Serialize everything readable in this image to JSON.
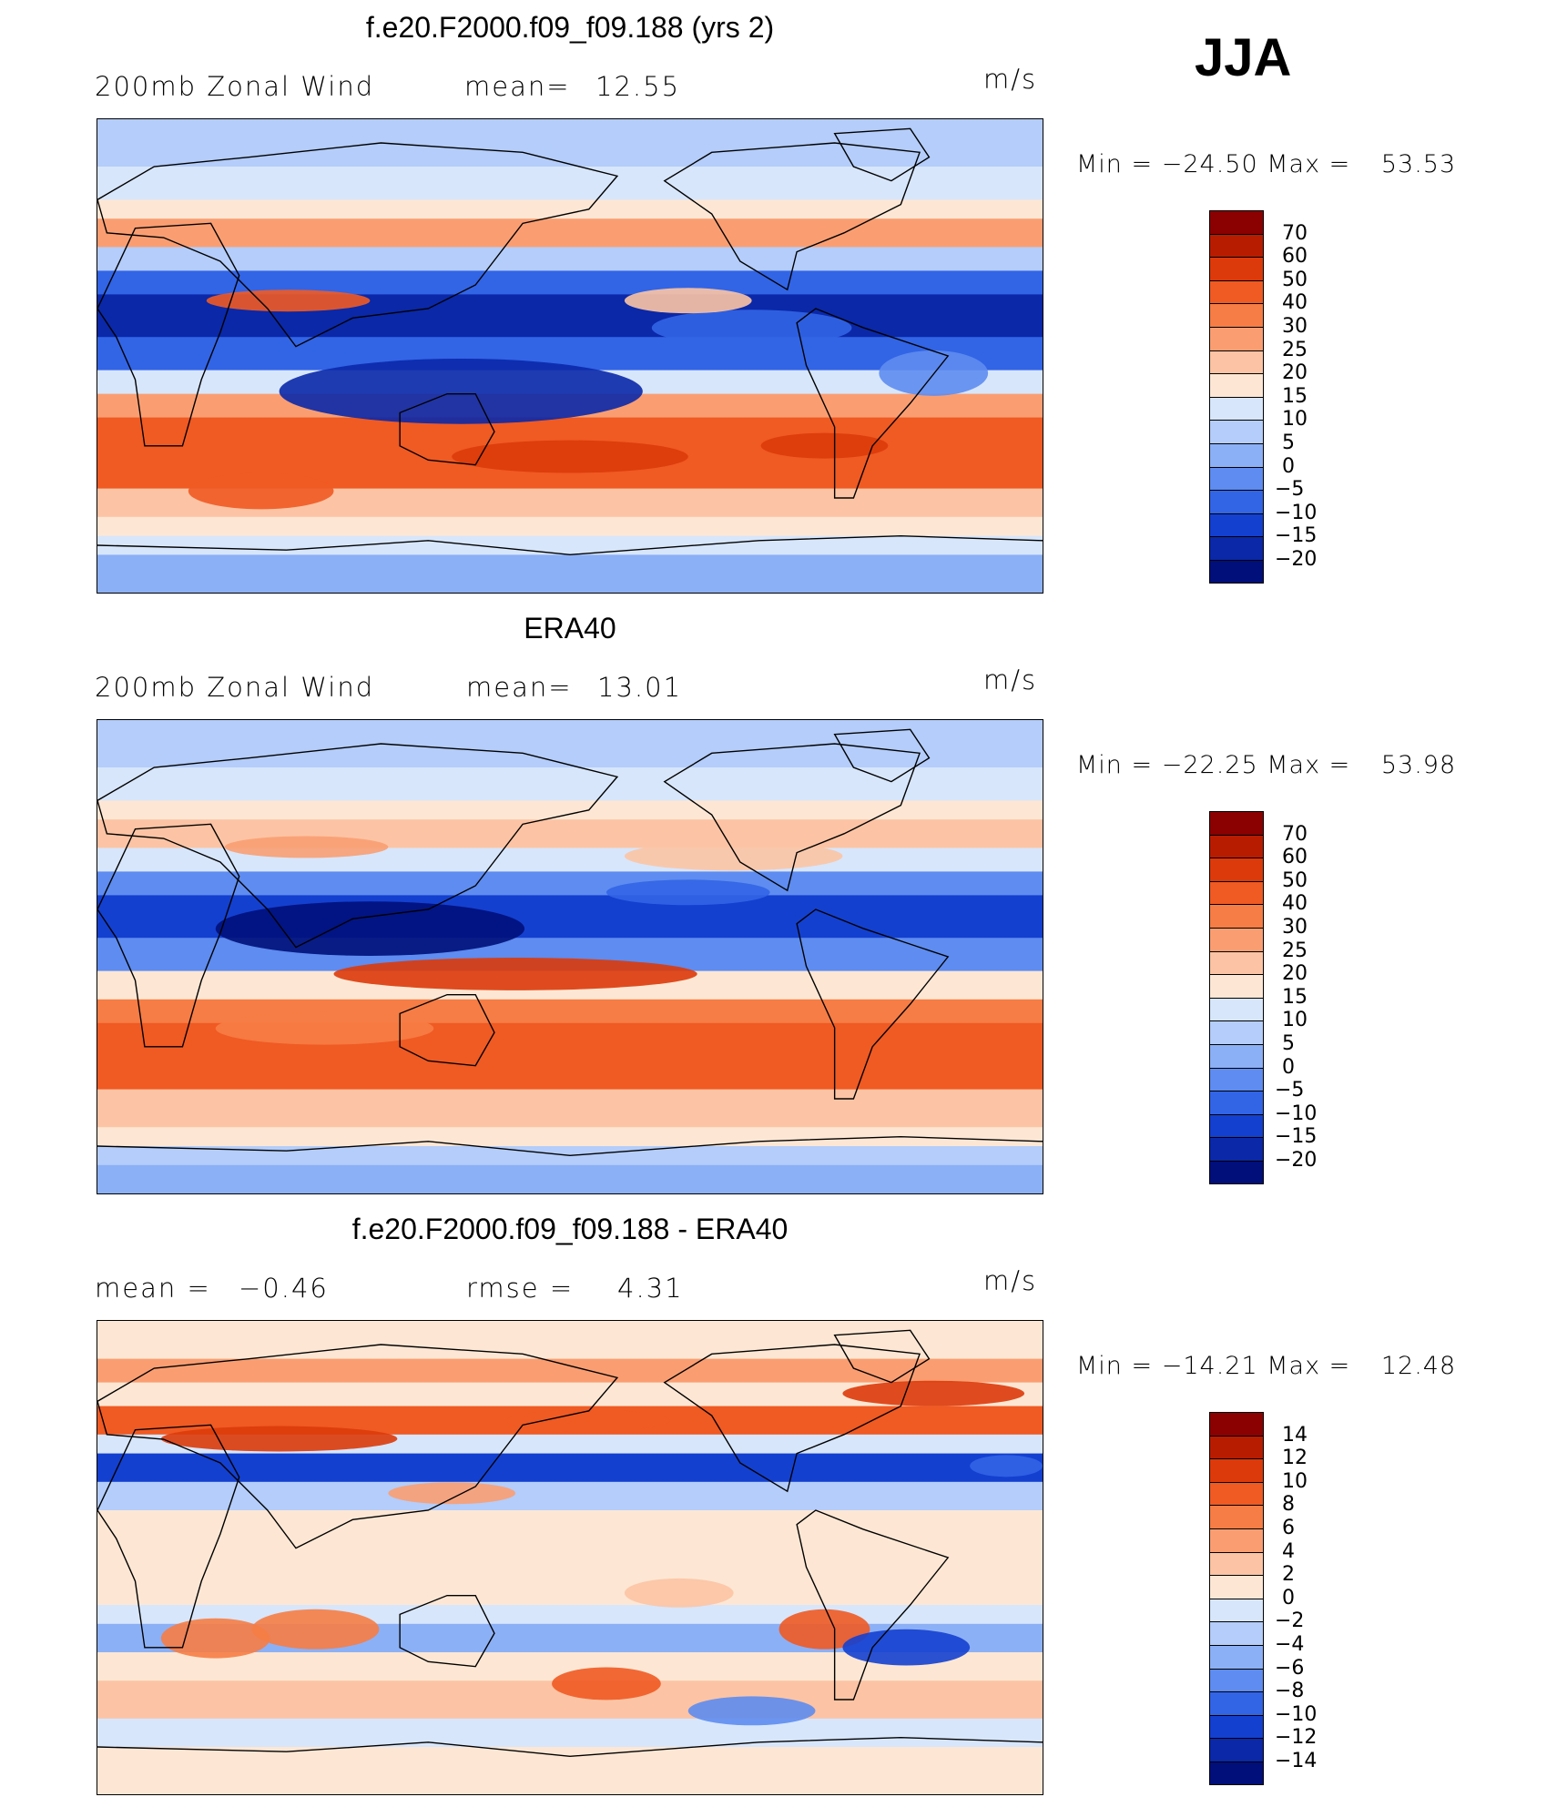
{
  "season": "JJA",
  "panels": [
    {
      "title": "f.e20.F2000.f09_f09.188 (yrs 2)",
      "left_label": "200mb  Zonal  Wind",
      "stat1_label": "mean=",
      "stat1_value": "12.55",
      "stat2_label": "",
      "stat2_value": "",
      "units": "m/s",
      "min_label": "Min  =",
      "min_value": "−24.50",
      "max_label": "Max  =",
      "max_value": "53.53",
      "kind": "model"
    },
    {
      "title": "ERA40",
      "left_label": "200mb  Zonal  Wind",
      "stat1_label": "mean=",
      "stat1_value": "13.01",
      "stat2_label": "",
      "stat2_value": "",
      "units": "m/s",
      "min_label": "Min  =",
      "min_value": "−22.25",
      "max_label": "Max  =",
      "max_value": "53.98",
      "kind": "obs"
    },
    {
      "title": "f.e20.F2000.f09_f09.188 - ERA40",
      "left_label": "mean  =",
      "stat1_label": "",
      "stat1_value": "−0.46",
      "stat2_label": "rmse  =",
      "stat2_value": "4.31",
      "units": "m/s",
      "min_label": "Min  =",
      "min_value": "−14.21",
      "max_label": "Max  =",
      "max_value": "12.48",
      "kind": "diff"
    }
  ],
  "colorbars": [
    {
      "labels": [
        "70",
        "60",
        "50",
        "40",
        "30",
        "25",
        "20",
        "15",
        "10",
        "5",
        "0",
        "−5",
        "−10",
        "−15",
        "−20"
      ],
      "colors": [
        "#8b0000",
        "#b81c00",
        "#dc3a0a",
        "#f05a23",
        "#f67d45",
        "#fa9e72",
        "#fcc4a4",
        "#fde7d4",
        "#d7e6fb",
        "#b4cdfa",
        "#8cb0f6",
        "#5e8cf0",
        "#3264e6",
        "#1440d0",
        "#0a28a8",
        "#000f7a"
      ]
    },
    {
      "labels": [
        "70",
        "60",
        "50",
        "40",
        "30",
        "25",
        "20",
        "15",
        "10",
        "5",
        "0",
        "−5",
        "−10",
        "−15",
        "−20"
      ],
      "colors": [
        "#8b0000",
        "#b81c00",
        "#dc3a0a",
        "#f05a23",
        "#f67d45",
        "#fa9e72",
        "#fcc4a4",
        "#fde7d4",
        "#d7e6fb",
        "#b4cdfa",
        "#8cb0f6",
        "#5e8cf0",
        "#3264e6",
        "#1440d0",
        "#0a28a8",
        "#000f7a"
      ]
    },
    {
      "labels": [
        "14",
        "12",
        "10",
        "8",
        "6",
        "4",
        "2",
        "0",
        "−2",
        "−4",
        "−6",
        "−8",
        "−10",
        "−12",
        "−14"
      ],
      "colors": [
        "#8b0000",
        "#b81c00",
        "#dc3a0a",
        "#f05a23",
        "#f67d45",
        "#fa9e72",
        "#fcc4a4",
        "#fde7d4",
        "#d7e6fb",
        "#b4cdfa",
        "#8cb0f6",
        "#5e8cf0",
        "#3264e6",
        "#1440d0",
        "#0a28a8",
        "#000f7a"
      ]
    }
  ],
  "chart_data": [
    {
      "type": "heatmap",
      "title": "f.e20.F2000.f09_f09.188 (yrs 2)",
      "variable": "200mb Zonal Wind",
      "units": "m/s",
      "mean": 12.55,
      "min": -24.5,
      "max": 53.53,
      "contour_levels": [
        -20,
        -15,
        -10,
        -5,
        0,
        5,
        10,
        15,
        20,
        25,
        30,
        40,
        50,
        60,
        70
      ]
    },
    {
      "type": "heatmap",
      "title": "ERA40",
      "variable": "200mb Zonal Wind",
      "units": "m/s",
      "mean": 13.01,
      "min": -22.25,
      "max": 53.98,
      "contour_levels": [
        -20,
        -15,
        -10,
        -5,
        0,
        5,
        10,
        15,
        20,
        25,
        30,
        40,
        50,
        60,
        70
      ]
    },
    {
      "type": "heatmap",
      "title": "f.e20.F2000.f09_f09.188 - ERA40",
      "units": "m/s",
      "mean": -0.46,
      "rmse": 4.31,
      "min": -14.21,
      "max": 12.48,
      "contour_levels": [
        -14,
        -12,
        -10,
        -8,
        -6,
        -4,
        -2,
        0,
        2,
        4,
        6,
        8,
        10,
        12,
        14
      ]
    }
  ]
}
